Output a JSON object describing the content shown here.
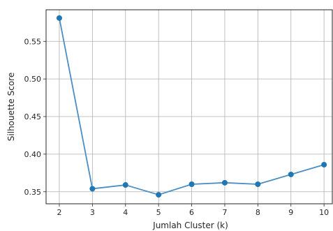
{
  "chart_data": {
    "type": "line",
    "title": "",
    "xlabel": "Jumlah Cluster (k)",
    "ylabel": "Silhouette Score",
    "x": [
      2,
      3,
      4,
      5,
      6,
      7,
      8,
      9,
      10
    ],
    "series": [
      {
        "values": [
          0.581,
          0.354,
          0.359,
          0.346,
          0.36,
          0.362,
          0.36,
          0.373,
          0.386
        ]
      }
    ],
    "xlim": [
      1.6,
      10.25
    ],
    "ylim": [
      0.334,
      0.592
    ],
    "xticks": [
      "2",
      "3",
      "4",
      "5",
      "6",
      "7",
      "8",
      "9",
      "10"
    ],
    "yticks": [
      "0.35",
      "0.40",
      "0.45",
      "0.50",
      "0.55"
    ],
    "grid": true,
    "line_color": "#4a8ec4",
    "marker_color": "#1f77b4"
  }
}
